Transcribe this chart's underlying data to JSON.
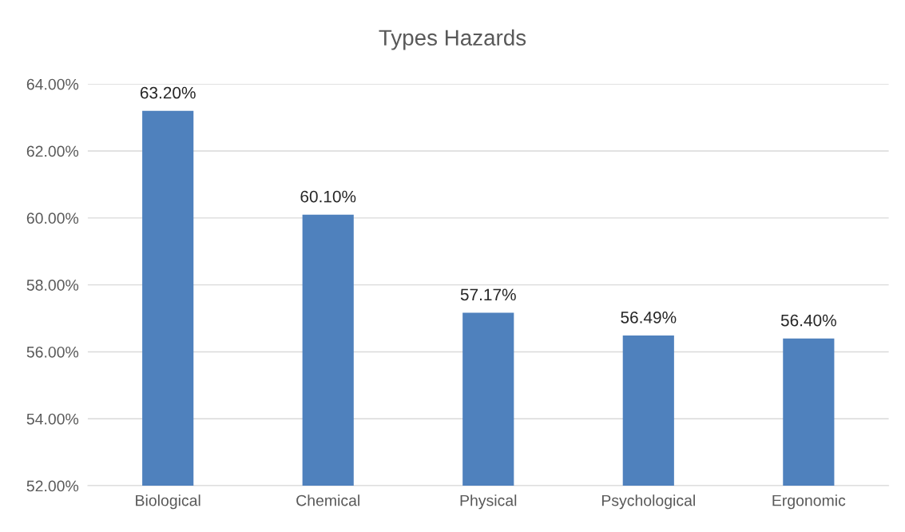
{
  "chart_data": {
    "type": "bar",
    "title": "Types Hazards",
    "categories": [
      "Biological",
      "Chemical",
      "Physical",
      "Psychological",
      "Ergonomic"
    ],
    "values": [
      63.2,
      60.1,
      57.17,
      56.49,
      56.4
    ],
    "value_labels": [
      "63.20%",
      "60.10%",
      "57.17%",
      "56.49%",
      "56.40%"
    ],
    "color": "#4f81bd",
    "ylim": [
      52,
      64
    ],
    "yticks": [
      {
        "value": 52,
        "label": "52.00%"
      },
      {
        "value": 54,
        "label": "54.00%"
      },
      {
        "value": 56,
        "label": "56.00%"
      },
      {
        "value": 58,
        "label": "58.00%"
      },
      {
        "value": 60,
        "label": "60.00%"
      },
      {
        "value": 62,
        "label": "62.00%"
      },
      {
        "value": 64,
        "label": "64.00%"
      }
    ],
    "grid": "y"
  }
}
